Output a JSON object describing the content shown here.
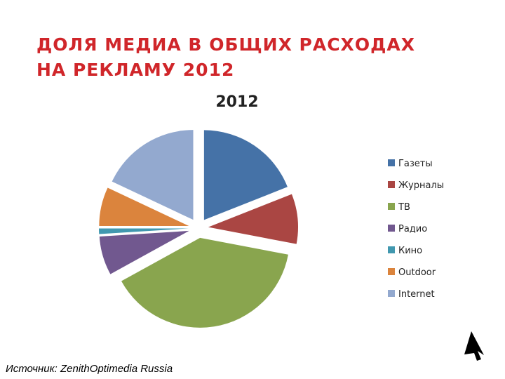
{
  "slide_title": [
    "ДОЛЯ МЕДИА В ОБЩИХ РАСХОДАХ",
    "НА РЕКЛАМУ 2012"
  ],
  "source": "Источник: ZenithOptimedia Russia",
  "chart_data": {
    "type": "pie",
    "title": "2012",
    "categories": [
      "Газеты",
      "Журналы",
      "ТВ",
      "Радио",
      "Кино",
      "Outdoor",
      "Internet"
    ],
    "values": [
      19,
      9,
      39,
      7,
      1,
      7,
      18
    ],
    "colors": [
      "#4572a7",
      "#aa4643",
      "#89a54e",
      "#71588f",
      "#4198af",
      "#db843d",
      "#93a9cf"
    ],
    "legend": "right"
  }
}
